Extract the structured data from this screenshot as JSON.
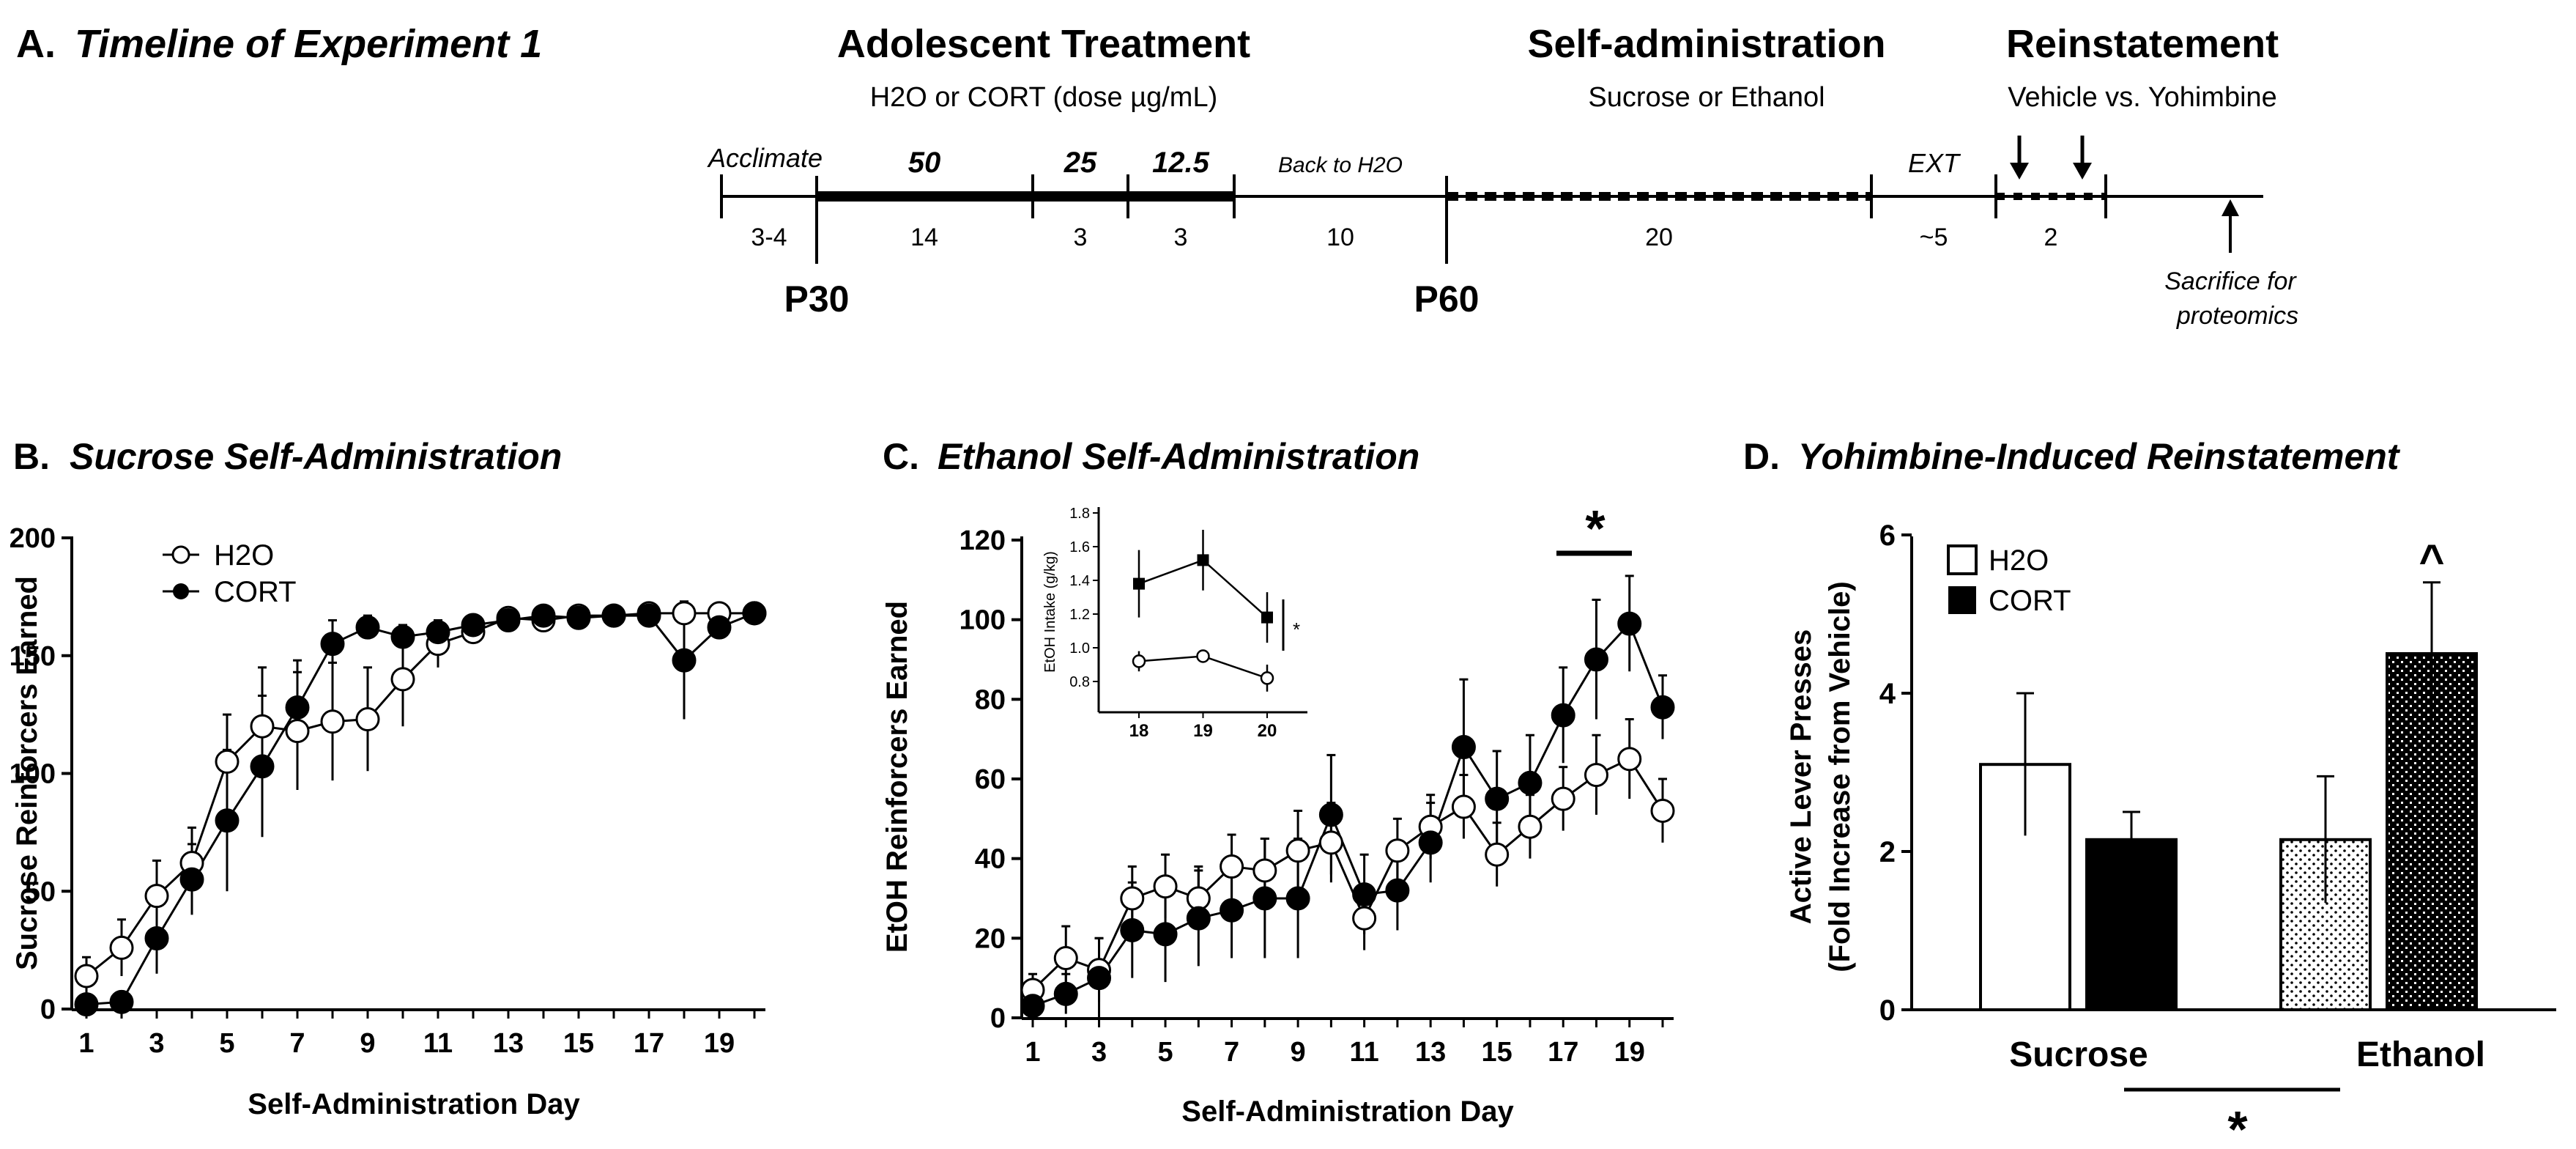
{
  "panel_a": {
    "letter": "A.",
    "title": "Timeline of Experiment 1",
    "phases": {
      "adolescent": {
        "title": "Adolescent Treatment",
        "subtitle": "H2O or CORT (dose µg/mL)"
      },
      "selfadmin": {
        "title": "Self-administration",
        "subtitle": "Sucrose or Ethanol"
      },
      "reinstatement": {
        "title": "Reinstatement",
        "subtitle": "Vehicle vs. Yohimbine"
      }
    },
    "segment_labels": {
      "acclimate": "Acclimate",
      "dose50": "50",
      "dose25": "25",
      "dose12": "12.5",
      "back": "Back to H2O",
      "ext": "EXT"
    },
    "durations": [
      "3-4",
      "14",
      "3",
      "3",
      "10",
      "20",
      "~5",
      "2"
    ],
    "age_markers": [
      "P30",
      "P60"
    ],
    "end_note": [
      "Sacrifice for",
      "proteomics"
    ]
  },
  "panel_b": {
    "letter": "B.",
    "title": "Sucrose Self-Administration"
  },
  "panel_c": {
    "letter": "C.",
    "title": "Ethanol Self-Administration",
    "sig_marker": "*",
    "inset_sig": "*"
  },
  "panel_d": {
    "letter": "D.",
    "title": "Yohimbine-Induced Reinstatement",
    "sig_marker": "^",
    "group_sig": "*"
  },
  "chart_data": [
    {
      "id": "B",
      "type": "line",
      "title": "Sucrose Self-Administration",
      "xlabel": "Self-Administration Day",
      "ylabel": "Sucrose Reinforcers Earned",
      "xlim": [
        1,
        20
      ],
      "ylim": [
        0,
        200
      ],
      "xticks": [
        1,
        3,
        5,
        7,
        9,
        11,
        13,
        15,
        17,
        19
      ],
      "yticks": [
        0,
        50,
        100,
        150,
        200
      ],
      "legend": "top-left",
      "x": [
        1,
        2,
        3,
        4,
        5,
        6,
        7,
        8,
        9,
        10,
        11,
        12,
        13,
        14,
        15,
        16,
        17,
        18,
        19,
        20
      ],
      "series": [
        {
          "name": "H2O",
          "marker": "open",
          "values": [
            14,
            26,
            48,
            62,
            105,
            120,
            118,
            122,
            123,
            140,
            155,
            160,
            166,
            165,
            167,
            167,
            168,
            168,
            168,
            168
          ],
          "errors": [
            8,
            12,
            15,
            15,
            20,
            25,
            25,
            25,
            22,
            20,
            10,
            5,
            3,
            3,
            3,
            3,
            3,
            3,
            3,
            3
          ]
        },
        {
          "name": "CORT",
          "marker": "filled",
          "values": [
            2,
            3,
            30,
            55,
            80,
            103,
            128,
            155,
            162,
            158,
            160,
            163,
            165,
            167,
            166,
            167,
            167,
            148,
            162,
            168
          ],
          "errors": [
            2,
            3,
            15,
            15,
            30,
            30,
            20,
            10,
            5,
            5,
            5,
            3,
            3,
            3,
            3,
            3,
            3,
            25,
            5,
            3
          ]
        }
      ]
    },
    {
      "id": "C",
      "type": "line",
      "title": "Ethanol Self-Administration",
      "xlabel": "Self-Administration Day",
      "ylabel": "EtOH Reinforcers Earned",
      "xlim": [
        1,
        20
      ],
      "ylim": [
        0,
        120
      ],
      "xticks": [
        1,
        3,
        5,
        7,
        9,
        11,
        13,
        15,
        17,
        19
      ],
      "yticks": [
        0,
        20,
        40,
        60,
        80,
        100,
        120
      ],
      "x": [
        1,
        2,
        3,
        4,
        5,
        6,
        7,
        8,
        9,
        10,
        11,
        12,
        13,
        14,
        15,
        16,
        17,
        18,
        19,
        20
      ],
      "series": [
        {
          "name": "H2O",
          "marker": "open",
          "values": [
            7,
            15,
            12,
            30,
            33,
            30,
            38,
            37,
            42,
            44,
            25,
            42,
            48,
            53,
            41,
            48,
            55,
            61,
            65,
            52
          ],
          "errors": [
            4,
            8,
            8,
            8,
            8,
            8,
            8,
            8,
            10,
            10,
            8,
            8,
            8,
            8,
            8,
            8,
            8,
            10,
            10,
            8
          ]
        },
        {
          "name": "CORT",
          "marker": "filled",
          "values": [
            3,
            6,
            10,
            22,
            21,
            25,
            27,
            30,
            30,
            51,
            31,
            32,
            44,
            68,
            55,
            59,
            76,
            90,
            99,
            78
          ],
          "errors": [
            3,
            5,
            10,
            12,
            12,
            12,
            12,
            15,
            15,
            15,
            10,
            10,
            10,
            17,
            12,
            12,
            12,
            15,
            12,
            8
          ]
        }
      ],
      "inset": {
        "ylabel": "EtOH Intake (g/kg)",
        "x": [
          18,
          19,
          20
        ],
        "xticks": [
          18,
          19,
          20
        ],
        "yticks": [
          0.8,
          1.0,
          1.2,
          1.4,
          1.6,
          1.8
        ],
        "ylim": [
          0.8,
          1.8
        ],
        "series": [
          {
            "name": "H2O",
            "marker": "open",
            "values": [
              0.92,
              0.95,
              0.82
            ],
            "errors": [
              0.06,
              0.03,
              0.08
            ]
          },
          {
            "name": "CORT",
            "marker": "filled",
            "values": [
              1.38,
              1.52,
              1.18
            ],
            "errors": [
              0.2,
              0.18,
              0.15
            ]
          }
        ]
      }
    },
    {
      "id": "D",
      "type": "bar",
      "title": "Yohimbine-Induced Reinstatement",
      "ylabel": [
        "Active Lever Presses",
        "(Fold Increase from Vehicle)"
      ],
      "categories": [
        "Sucrose",
        "Ethanol"
      ],
      "ylim": [
        0,
        6
      ],
      "yticks": [
        0,
        2,
        4,
        6
      ],
      "legend": "top-left",
      "series": [
        {
          "name": "H2O",
          "values": [
            3.1,
            2.15
          ],
          "errors": [
            0.9,
            0.8
          ]
        },
        {
          "name": "CORT",
          "values": [
            2.15,
            4.5
          ],
          "errors": [
            0.35,
            0.9
          ]
        }
      ]
    }
  ]
}
